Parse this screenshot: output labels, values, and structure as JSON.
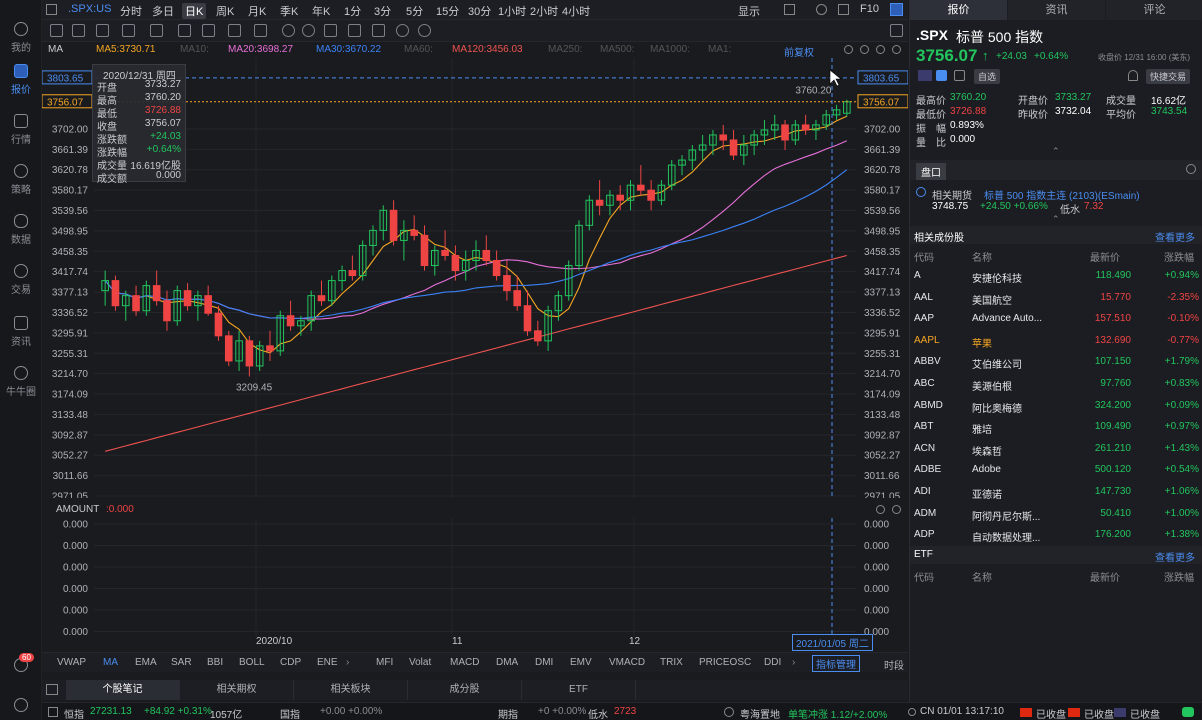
{
  "left_nav": [
    {
      "label": "我的",
      "icon": "user-icon"
    },
    {
      "label": "报价",
      "icon": "chart-icon",
      "active": true
    },
    {
      "label": "行情",
      "icon": "market-icon"
    },
    {
      "label": "策略",
      "icon": "strategy-icon"
    },
    {
      "label": "数据",
      "icon": "database-icon"
    },
    {
      "label": "交易",
      "icon": "trade-icon"
    },
    {
      "label": "资讯",
      "icon": "news-icon"
    },
    {
      "label": "牛牛圈",
      "icon": "community-icon"
    }
  ],
  "left_badge": "60",
  "symbol": ".SPX:US",
  "periods": [
    "分时",
    "多日",
    "日K",
    "周K",
    "月K",
    "季K",
    "年K",
    "1分",
    "3分",
    "5分",
    "15分",
    "30分",
    "1小时",
    "2小时",
    "4小时"
  ],
  "active_period": "日K",
  "top_right": {
    "display": "显示",
    "f10": "F10"
  },
  "ma_row": {
    "ma": "MA",
    "ma5": "MA5:3730.71",
    "ma10": "MA10:",
    "ma20": "MA20:3698.27",
    "ma30": "MA30:3670.22",
    "ma60": "MA60:",
    "ma120": "MA120:3456.03",
    "ma250": "MA250:",
    "ma500": "MA500:",
    "ma1000": "MA1000:",
    "ma1": "MA1:",
    "adjust": "前复权"
  },
  "colors": {
    "ma5": "#f5a623",
    "ma20": "#e66fd8",
    "ma30": "#3b82f6",
    "ma120": "#ef5350",
    "up": "#22c55e",
    "down": "#ef4444"
  },
  "info_box": {
    "date": "2020/12/31 周四",
    "open_label": "开盘",
    "open": "3733.27",
    "high_label": "最高",
    "high": "3760.20",
    "low_label": "最低",
    "low": "3726.88",
    "close_label": "收盘",
    "close": "3756.07",
    "chg_label": "涨跌额",
    "chg": "+24.03",
    "chgp_label": "涨跌幅",
    "chgp": "+0.64%",
    "vol_label": "成交量",
    "vol": "16.619亿股",
    "amt_label": "成交额",
    "amt": "0.000"
  },
  "y_axis_left": [
    "3803.65",
    "3756.07",
    "3702.00",
    "3661.39",
    "3620.78",
    "3580.17",
    "3539.56",
    "3498.95",
    "3458.35",
    "3417.74",
    "3377.13",
    "3336.52",
    "3295.91",
    "3255.31",
    "3214.70",
    "3174.09",
    "3133.48",
    "3092.87",
    "3052.27",
    "3011.66",
    "2971.05"
  ],
  "y_axis_right": [
    "3803.65",
    "3756.07",
    "3702.00",
    "3661.39",
    "3620.78",
    "3580.17",
    "3539.56",
    "3498.95",
    "3458.35",
    "3417.74",
    "3377.13",
    "3336.52",
    "3295.91",
    "3255.31",
    "3214.70",
    "3174.09",
    "3133.48",
    "3092.87",
    "3052.27",
    "3011.66",
    "2971.05"
  ],
  "chart_data": {
    "type": "candlestick",
    "title": ".SPX:US",
    "ylim": [
      2971.05,
      3843.26
    ],
    "high_label": "3760.20",
    "low_label": "3209.45",
    "x_ticks": [
      "2020/10",
      "11",
      "12"
    ],
    "cursor_date": "2021/01/05 周二",
    "candles": [
      [
        3380,
        3420,
        3350,
        3400
      ],
      [
        3400,
        3410,
        3340,
        3350
      ],
      [
        3350,
        3380,
        3320,
        3370
      ],
      [
        3370,
        3390,
        3330,
        3340
      ],
      [
        3340,
        3400,
        3330,
        3390
      ],
      [
        3390,
        3420,
        3350,
        3360
      ],
      [
        3360,
        3380,
        3300,
        3320
      ],
      [
        3320,
        3390,
        3310,
        3380
      ],
      [
        3380,
        3395,
        3340,
        3350
      ],
      [
        3350,
        3380,
        3320,
        3370
      ],
      [
        3370,
        3390,
        3330,
        3335
      ],
      [
        3335,
        3350,
        3280,
        3290
      ],
      [
        3290,
        3300,
        3230,
        3240
      ],
      [
        3240,
        3300,
        3220,
        3280
      ],
      [
        3280,
        3290,
        3209,
        3230
      ],
      [
        3230,
        3280,
        3220,
        3270
      ],
      [
        3270,
        3300,
        3240,
        3260
      ],
      [
        3260,
        3340,
        3250,
        3330
      ],
      [
        3330,
        3360,
        3300,
        3310
      ],
      [
        3310,
        3330,
        3290,
        3320
      ],
      [
        3320,
        3380,
        3300,
        3370
      ],
      [
        3370,
        3400,
        3350,
        3360
      ],
      [
        3360,
        3410,
        3350,
        3400
      ],
      [
        3400,
        3430,
        3380,
        3420
      ],
      [
        3420,
        3450,
        3400,
        3410
      ],
      [
        3410,
        3480,
        3400,
        3470
      ],
      [
        3470,
        3510,
        3450,
        3500
      ],
      [
        3500,
        3550,
        3480,
        3540
      ],
      [
        3540,
        3560,
        3470,
        3480
      ],
      [
        3480,
        3520,
        3440,
        3500
      ],
      [
        3500,
        3530,
        3480,
        3490
      ],
      [
        3490,
        3510,
        3420,
        3430
      ],
      [
        3430,
        3470,
        3410,
        3460
      ],
      [
        3460,
        3500,
        3440,
        3450
      ],
      [
        3450,
        3470,
        3400,
        3420
      ],
      [
        3420,
        3460,
        3400,
        3440
      ],
      [
        3440,
        3480,
        3420,
        3460
      ],
      [
        3460,
        3490,
        3430,
        3440
      ],
      [
        3440,
        3460,
        3400,
        3410
      ],
      [
        3410,
        3440,
        3360,
        3380
      ],
      [
        3380,
        3410,
        3340,
        3350
      ],
      [
        3350,
        3380,
        3290,
        3300
      ],
      [
        3300,
        3320,
        3270,
        3280
      ],
      [
        3280,
        3350,
        3260,
        3340
      ],
      [
        3340,
        3380,
        3320,
        3370
      ],
      [
        3370,
        3440,
        3360,
        3430
      ],
      [
        3430,
        3520,
        3420,
        3510
      ],
      [
        3510,
        3570,
        3500,
        3560
      ],
      [
        3560,
        3600,
        3530,
        3550
      ],
      [
        3550,
        3580,
        3530,
        3570
      ],
      [
        3570,
        3590,
        3540,
        3560
      ],
      [
        3560,
        3600,
        3540,
        3590
      ],
      [
        3590,
        3630,
        3570,
        3580
      ],
      [
        3580,
        3600,
        3540,
        3560
      ],
      [
        3560,
        3600,
        3550,
        3590
      ],
      [
        3590,
        3640,
        3580,
        3630
      ],
      [
        3630,
        3650,
        3610,
        3640
      ],
      [
        3640,
        3670,
        3620,
        3660
      ],
      [
        3660,
        3690,
        3640,
        3670
      ],
      [
        3670,
        3700,
        3650,
        3690
      ],
      [
        3690,
        3710,
        3660,
        3680
      ],
      [
        3680,
        3700,
        3640,
        3650
      ],
      [
        3650,
        3690,
        3630,
        3670
      ],
      [
        3670,
        3700,
        3650,
        3690
      ],
      [
        3690,
        3720,
        3670,
        3700
      ],
      [
        3700,
        3730,
        3680,
        3710
      ],
      [
        3710,
        3720,
        3660,
        3680
      ],
      [
        3680,
        3720,
        3670,
        3710
      ],
      [
        3710,
        3730,
        3690,
        3700
      ],
      [
        3700,
        3720,
        3680,
        3710
      ],
      [
        3710,
        3740,
        3700,
        3730
      ],
      [
        3730,
        3750,
        3720,
        3740
      ],
      [
        3733.27,
        3760.2,
        3726.88,
        3756.07
      ]
    ]
  },
  "amount_row": {
    "label": "AMOUNT",
    "value": ":0.000"
  },
  "vol_axis": [
    "0.000",
    "0.000",
    "0.000",
    "0.000",
    "0.000",
    "0.000"
  ],
  "indicator_tabs": [
    "VWAP",
    "MA",
    "EMA",
    "SAR",
    "BBI",
    "BOLL",
    "CDP",
    "ENE",
    "MFI",
    "Volat",
    "MACD",
    "DMA",
    "DMI",
    "EMV",
    "VMACD",
    "TRIX",
    "PRICEOSC",
    "DDI"
  ],
  "indicator_manage": "指标管理",
  "time_period": "时段",
  "bottom_tabs": [
    "个股笔记",
    "相关期权",
    "相关板块",
    "成分股",
    "ETF"
  ],
  "status": {
    "hengzhi_label": "恒指",
    "hengzhi": "27231.13",
    "hengzhi_chg": "+84.92 +0.31%",
    "hengzhi_amt": "1057亿",
    "guozhi_label": "国指",
    "guozhi": "+0.00 +0.00%",
    "qizhi_label": "期指",
    "qizhi": "+0 +0.00%",
    "qizhi_low": "低水",
    "qizhi_low_val": "2723",
    "region": "粤海置地",
    "region_info": "单笔冲涨 1.12/+2.00%",
    "time": "CN 01/01 13:17:10",
    "closed1": "已收盘",
    "closed2": "已收盘",
    "closed3": "已收盘"
  },
  "right_tabs": [
    "报价",
    "资讯",
    "评论"
  ],
  "quote": {
    "code": ".SPX",
    "name": "标普 500 指数",
    "price": "3756.07",
    "arrow": "↑",
    "chg": "+24.03",
    "chgp": "+0.64%",
    "close_time": "收盘价 12/31 16:00 (美东)",
    "tag_self": "自选",
    "tag_quick": "快捷交易",
    "high_label": "最高价",
    "high": "3760.20",
    "open_label": "开盘价",
    "open": "3733.27",
    "vol_label": "成交量",
    "vol": "16.62亿",
    "low_label": "最低价",
    "low": "3726.88",
    "prev_label": "昨收价",
    "prev": "3732.04",
    "avg_label": "平均价",
    "avg": "3743.54",
    "amp_label": "振　幅",
    "amp": "0.893%",
    "ratio_label": "量　比",
    "ratio": "0.000"
  },
  "pankou": "盘口",
  "futures": {
    "label": "相关期货",
    "name": "标普 500 指数主连 (2103)(ESmain)",
    "price": "3748.75",
    "chg": "+24.50 +0.66%",
    "low": "低水",
    "low_val": "7.32"
  },
  "constituents": {
    "title": "相关成份股",
    "more": "查看更多",
    "headers": [
      "代码",
      "名称",
      "最新价",
      "涨跌幅"
    ],
    "rows": [
      {
        "code": "A",
        "name": "安捷伦科技",
        "price": "118.490",
        "chg": "+0.94%",
        "up": true
      },
      {
        "code": "AAL",
        "name": "美国航空",
        "price": "15.770",
        "chg": "-2.35%",
        "up": false
      },
      {
        "code": "AAP",
        "name": "Advance Auto...",
        "price": "157.510",
        "chg": "-0.10%",
        "up": false
      },
      {
        "code": "AAPL",
        "name": "苹果",
        "price": "132.690",
        "chg": "-0.77%",
        "up": false,
        "highlight": true
      },
      {
        "code": "ABBV",
        "name": "艾伯维公司",
        "price": "107.150",
        "chg": "+1.79%",
        "up": true
      },
      {
        "code": "ABC",
        "name": "美源伯根",
        "price": "97.760",
        "chg": "+0.83%",
        "up": true
      },
      {
        "code": "ABMD",
        "name": "阿比奥梅德",
        "price": "324.200",
        "chg": "+0.09%",
        "up": true
      },
      {
        "code": "ABT",
        "name": "雅培",
        "price": "109.490",
        "chg": "+0.97%",
        "up": true
      },
      {
        "code": "ACN",
        "name": "埃森哲",
        "price": "261.210",
        "chg": "+1.43%",
        "up": true
      },
      {
        "code": "ADBE",
        "name": "Adobe",
        "price": "500.120",
        "chg": "+0.54%",
        "up": true
      },
      {
        "code": "ADI",
        "name": "亚德诺",
        "price": "147.730",
        "chg": "+1.06%",
        "up": true
      },
      {
        "code": "ADM",
        "name": "阿彻丹尼尔斯...",
        "price": "50.410",
        "chg": "+1.00%",
        "up": true
      },
      {
        "code": "ADP",
        "name": "自动数据处理...",
        "price": "176.200",
        "chg": "+1.38%",
        "up": true
      }
    ]
  },
  "etf": {
    "title": "ETF",
    "more": "查看更多",
    "headers": [
      "代码",
      "名称",
      "最新价",
      "涨跌幅"
    ]
  }
}
